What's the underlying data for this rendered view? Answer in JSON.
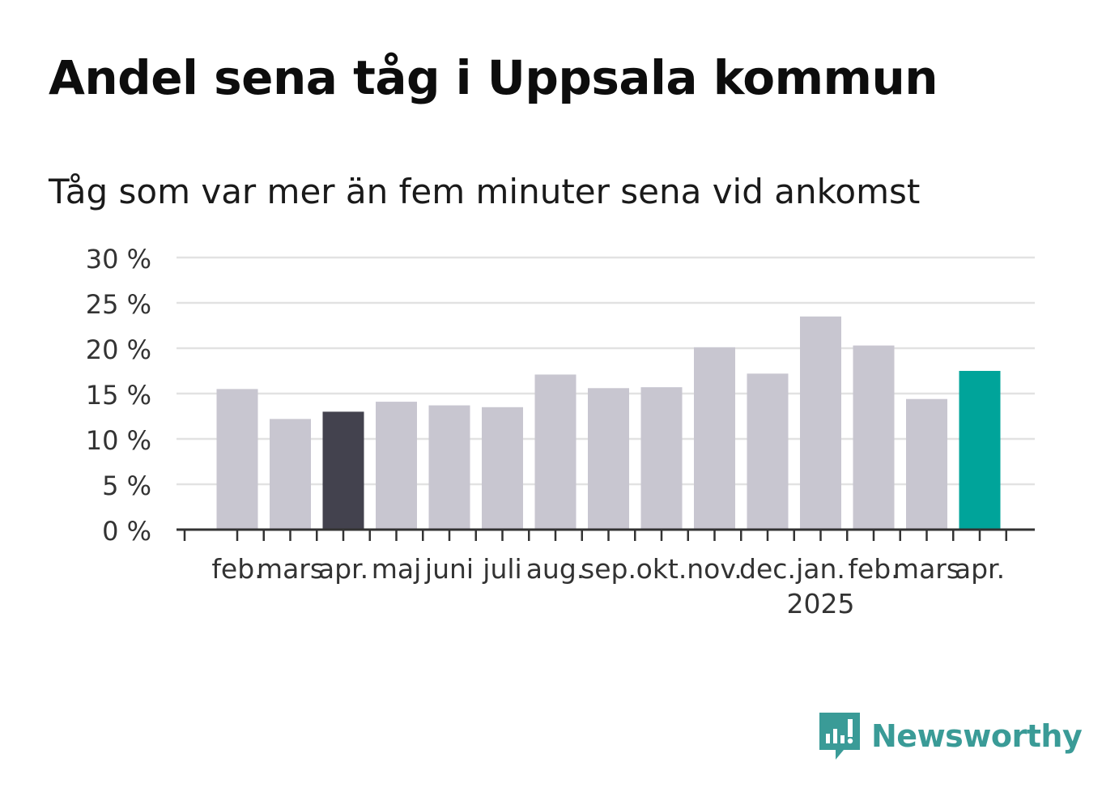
{
  "header": {
    "title": "Andel sena tåg i Uppsala kommun",
    "subtitle": "Tåg som var mer än fem minuter sena vid ankomst"
  },
  "chart_data": {
    "type": "bar",
    "categories": [
      "feb.",
      "mars",
      "apr.",
      "maj",
      "juni",
      "juli",
      "aug.",
      "sep.",
      "okt.",
      "nov.",
      "dec.",
      "jan.",
      "feb.",
      "mars",
      "apr."
    ],
    "year_label": {
      "text": "2025",
      "under_category_index": 11
    },
    "values": [
      15.5,
      12.2,
      13.0,
      14.1,
      13.7,
      13.5,
      17.1,
      15.6,
      15.7,
      20.1,
      17.2,
      23.5,
      20.3,
      14.4,
      17.5
    ],
    "y_ticks": [
      0,
      5,
      10,
      15,
      20,
      25,
      30
    ],
    "y_tick_suffix": " %",
    "ylim": [
      0,
      30
    ],
    "grid": true,
    "colors": {
      "default": "#c8c6d0",
      "highlight_previous_year": "#43424e",
      "highlight_latest": "#00a49a",
      "gridline": "#e2e2e2",
      "axis": "#333333",
      "tick_label": "#333333"
    },
    "highlight": {
      "previous_year_index": 2,
      "latest_index": 14
    }
  },
  "logo": {
    "text": "Newsworthy",
    "icon": "newsworthy-chart-bubble-icon",
    "color": "#3a9b97"
  }
}
